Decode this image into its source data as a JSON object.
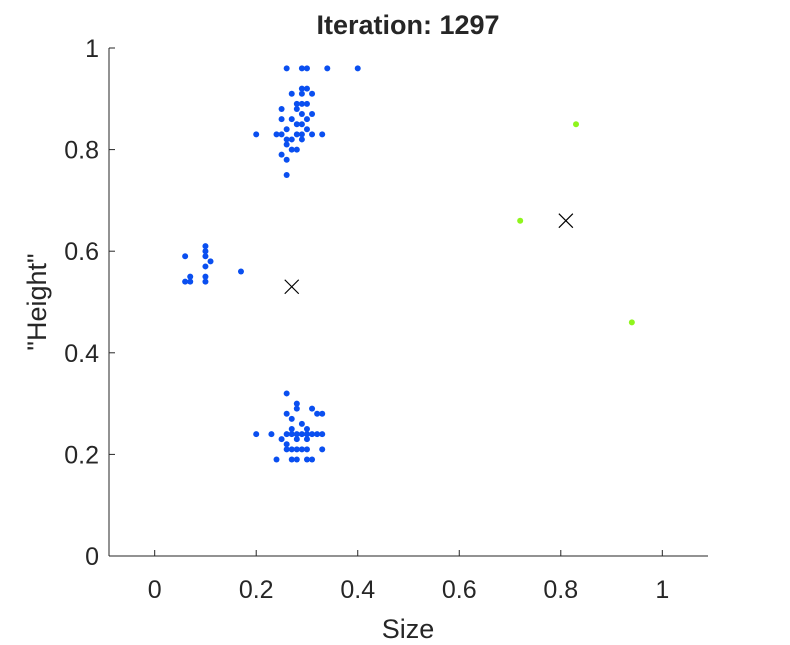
{
  "chart_data": {
    "type": "scatter",
    "title": "Iteration: 1297",
    "xlabel": "Size",
    "ylabel": "\"Height\"",
    "xlim": [
      -0.09,
      1.09
    ],
    "ylim": [
      0,
      1
    ],
    "xticks": [
      0,
      0.2,
      0.4,
      0.6,
      0.8,
      1
    ],
    "xtick_labels": [
      "0",
      "0.2",
      "0.4",
      "0.6",
      "0.8",
      "1"
    ],
    "yticks": [
      0,
      0.2,
      0.4,
      0.6,
      0.8,
      1
    ],
    "ytick_labels": [
      "0",
      "0.2",
      "0.4",
      "0.6",
      "0.8",
      "1"
    ],
    "grid": false,
    "series": [
      {
        "color": "#0a4ff0",
        "marker": "dot",
        "points": [
          [
            0.26,
            0.96
          ],
          [
            0.29,
            0.96
          ],
          [
            0.3,
            0.96
          ],
          [
            0.34,
            0.96
          ],
          [
            0.4,
            0.96
          ],
          [
            0.29,
            0.92
          ],
          [
            0.3,
            0.92
          ],
          [
            0.27,
            0.91
          ],
          [
            0.29,
            0.91
          ],
          [
            0.31,
            0.91
          ],
          [
            0.28,
            0.89
          ],
          [
            0.29,
            0.89
          ],
          [
            0.3,
            0.89
          ],
          [
            0.25,
            0.88
          ],
          [
            0.28,
            0.88
          ],
          [
            0.29,
            0.87
          ],
          [
            0.31,
            0.87
          ],
          [
            0.25,
            0.86
          ],
          [
            0.27,
            0.86
          ],
          [
            0.3,
            0.86
          ],
          [
            0.28,
            0.85
          ],
          [
            0.29,
            0.85
          ],
          [
            0.26,
            0.84
          ],
          [
            0.3,
            0.84
          ],
          [
            0.2,
            0.83
          ],
          [
            0.24,
            0.83
          ],
          [
            0.25,
            0.83
          ],
          [
            0.28,
            0.83
          ],
          [
            0.29,
            0.83
          ],
          [
            0.31,
            0.83
          ],
          [
            0.33,
            0.83
          ],
          [
            0.26,
            0.82
          ],
          [
            0.27,
            0.82
          ],
          [
            0.29,
            0.82
          ],
          [
            0.26,
            0.81
          ],
          [
            0.27,
            0.8
          ],
          [
            0.28,
            0.8
          ],
          [
            0.25,
            0.79
          ],
          [
            0.26,
            0.78
          ],
          [
            0.26,
            0.75
          ],
          [
            0.1,
            0.61
          ],
          [
            0.1,
            0.6
          ],
          [
            0.06,
            0.59
          ],
          [
            0.1,
            0.59
          ],
          [
            0.11,
            0.58
          ],
          [
            0.1,
            0.57
          ],
          [
            0.17,
            0.56
          ],
          [
            0.07,
            0.55
          ],
          [
            0.1,
            0.55
          ],
          [
            0.06,
            0.54
          ],
          [
            0.07,
            0.54
          ],
          [
            0.1,
            0.54
          ],
          [
            0.26,
            0.32
          ],
          [
            0.28,
            0.3
          ],
          [
            0.28,
            0.29
          ],
          [
            0.31,
            0.29
          ],
          [
            0.32,
            0.28
          ],
          [
            0.33,
            0.28
          ],
          [
            0.26,
            0.28
          ],
          [
            0.27,
            0.27
          ],
          [
            0.29,
            0.26
          ],
          [
            0.27,
            0.25
          ],
          [
            0.3,
            0.25
          ],
          [
            0.28,
            0.24
          ],
          [
            0.2,
            0.24
          ],
          [
            0.23,
            0.24
          ],
          [
            0.26,
            0.24
          ],
          [
            0.27,
            0.24
          ],
          [
            0.29,
            0.24
          ],
          [
            0.3,
            0.24
          ],
          [
            0.31,
            0.24
          ],
          [
            0.32,
            0.24
          ],
          [
            0.33,
            0.24
          ],
          [
            0.25,
            0.23
          ],
          [
            0.28,
            0.23
          ],
          [
            0.3,
            0.23
          ],
          [
            0.26,
            0.22
          ],
          [
            0.27,
            0.21
          ],
          [
            0.28,
            0.21
          ],
          [
            0.29,
            0.21
          ],
          [
            0.3,
            0.21
          ],
          [
            0.26,
            0.21
          ],
          [
            0.33,
            0.21
          ],
          [
            0.24,
            0.19
          ],
          [
            0.27,
            0.19
          ],
          [
            0.28,
            0.19
          ],
          [
            0.3,
            0.19
          ],
          [
            0.31,
            0.19
          ]
        ]
      },
      {
        "color": "#8ff51c",
        "marker": "dot",
        "points": [
          [
            0.83,
            0.85
          ],
          [
            0.72,
            0.66
          ],
          [
            0.94,
            0.46
          ]
        ]
      },
      {
        "color": "#000000",
        "marker": "x",
        "points": [
          [
            0.27,
            0.53
          ],
          [
            0.81,
            0.66
          ]
        ]
      }
    ]
  }
}
